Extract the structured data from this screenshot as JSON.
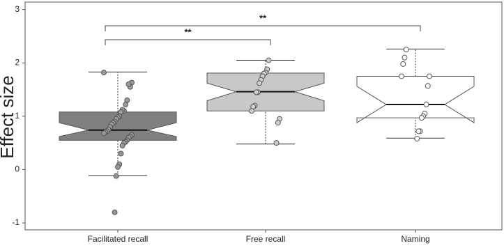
{
  "chart_data": {
    "type": "boxplot",
    "y_label": "Effect size",
    "categories": [
      "Facilitated recall",
      "Free recall",
      "Naming"
    ],
    "boxes": [
      {
        "whisker_low": -0.11,
        "q1": 0.55,
        "notch_low": 0.62,
        "median": 0.74,
        "notch_high": 0.88,
        "q3": 1.08,
        "whisker_high": 1.83,
        "color": "#808080",
        "point_color": "#999999",
        "points": [
          1.82,
          1.63,
          1.55,
          1.6,
          1.3,
          1.22,
          1.1,
          1.12,
          1.08,
          1.0,
          0.98,
          0.95,
          0.9,
          0.88,
          0.85,
          0.8,
          0.75,
          0.72,
          0.7,
          0.68,
          0.65,
          0.62,
          0.6,
          0.55,
          0.52,
          0.5,
          0.45,
          0.3,
          0.1,
          0.05,
          -0.12,
          -0.8
        ]
      },
      {
        "whisker_low": 0.48,
        "q1": 1.1,
        "notch_low": 1.29,
        "median": 1.46,
        "notch_high": 1.62,
        "q3": 1.81,
        "whisker_high": 2.05,
        "color": "#c8c8c8",
        "point_color": "#cfcfcf",
        "points": [
          2.05,
          1.88,
          1.82,
          1.8,
          1.75,
          1.68,
          1.62,
          1.45,
          1.45,
          1.2,
          1.18,
          1.1,
          0.95,
          0.88,
          0.5
        ]
      },
      {
        "whisker_low": 0.59,
        "q1": 0.97,
        "notch_low": 0.88,
        "median": 1.22,
        "notch_high": 1.56,
        "q3": 1.75,
        "whisker_high": 2.26,
        "color": "#ffffff",
        "point_color": "#ffffff",
        "points": [
          2.25,
          2.1,
          1.98,
          1.75,
          1.75,
          1.57,
          1.22,
          1.05,
          1.0,
          0.97,
          0.72,
          0.72,
          0.58
        ]
      }
    ],
    "annotations": [
      {
        "text": "**"
      },
      {
        "text": "**"
      }
    ],
    "ylim": [
      -1.13,
      3.14
    ],
    "yticks": [
      -1,
      0,
      1,
      2,
      3
    ]
  }
}
